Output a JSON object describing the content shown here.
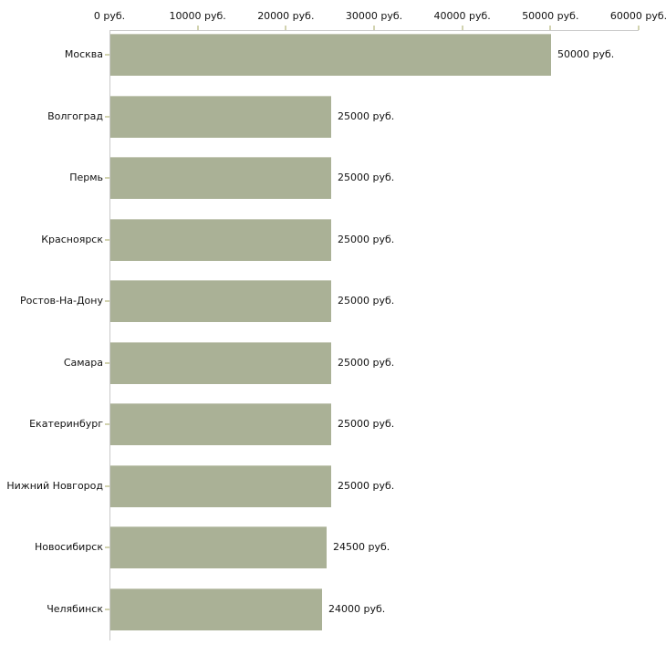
{
  "chart_data": {
    "type": "bar",
    "orientation": "horizontal",
    "title": "",
    "xlabel": "",
    "ylabel": "",
    "unit": "руб.",
    "categories": [
      "Москва",
      "Волгоград",
      "Пермь",
      "Красноярск",
      "Ростов-На-Дону",
      "Самара",
      "Екатеринбург",
      "Нижний Новгород",
      "Новосибирск",
      "Челябинск"
    ],
    "values": [
      50000,
      25000,
      25000,
      25000,
      25000,
      25000,
      25000,
      25000,
      24500,
      24000
    ],
    "value_labels": [
      "50000 руб.",
      "25000 руб.",
      "25000 руб.",
      "25000 руб.",
      "25000 руб.",
      "25000 руб.",
      "25000 руб.",
      "25000 руб.",
      "24500 руб.",
      "24000 руб."
    ],
    "x_ticks": [
      0,
      10000,
      20000,
      30000,
      40000,
      50000,
      60000
    ],
    "x_tick_labels": [
      "0 руб.",
      "10000 руб.",
      "20000 руб.",
      "30000 руб.",
      "40000 руб.",
      "50000 руб.",
      "60000 руб."
    ],
    "xlim": [
      0,
      60000
    ],
    "grid": false,
    "legend": false,
    "axis_position": "top",
    "colors": {
      "bar_fill": "#aab196",
      "bar_border": "#c8ccba",
      "axis_line": "#c9c9c9",
      "tick_mark": "#d2d3b0",
      "text": "#111111",
      "background": "#ffffff"
    }
  }
}
